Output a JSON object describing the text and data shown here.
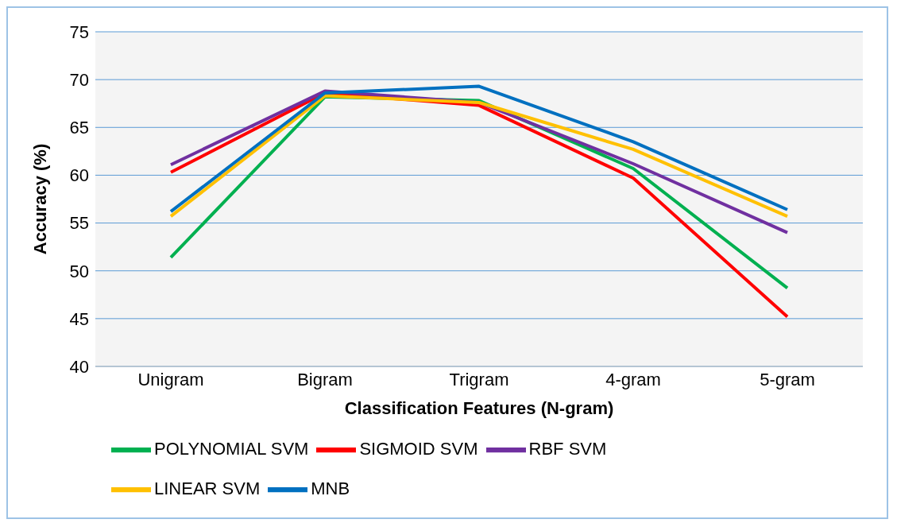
{
  "chart_data": {
    "type": "line",
    "xlabel": "Classification Features (N-gram)",
    "ylabel": "Accuracy (%)",
    "categories": [
      "Unigram",
      "Bigram",
      "Trigram",
      "4-gram",
      "5-gram"
    ],
    "ylim": [
      40,
      75
    ],
    "yticks": [
      40,
      45,
      50,
      55,
      60,
      65,
      70,
      75
    ],
    "grid": "y",
    "legend": "bottom",
    "marker": "none",
    "line_style": "solid",
    "series": [
      {
        "name": "POLYNOMIAL SVM",
        "color": "#00b050",
        "values": [
          51.4,
          68.2,
          67.8,
          60.7,
          48.2
        ]
      },
      {
        "name": "SIGMOID SVM",
        "color": "#ff0000",
        "values": [
          60.3,
          68.6,
          67.3,
          59.7,
          45.2
        ]
      },
      {
        "name": "RBF SVM",
        "color": "#7030a0",
        "values": [
          61.1,
          68.8,
          67.6,
          61.2,
          54.0
        ]
      },
      {
        "name": "LINEAR SVM",
        "color": "#ffc000",
        "values": [
          55.7,
          68.3,
          67.6,
          62.7,
          55.7
        ]
      },
      {
        "name": "MNB",
        "color": "#0070c0",
        "values": [
          56.2,
          68.6,
          69.3,
          63.5,
          56.4
        ]
      }
    ]
  }
}
